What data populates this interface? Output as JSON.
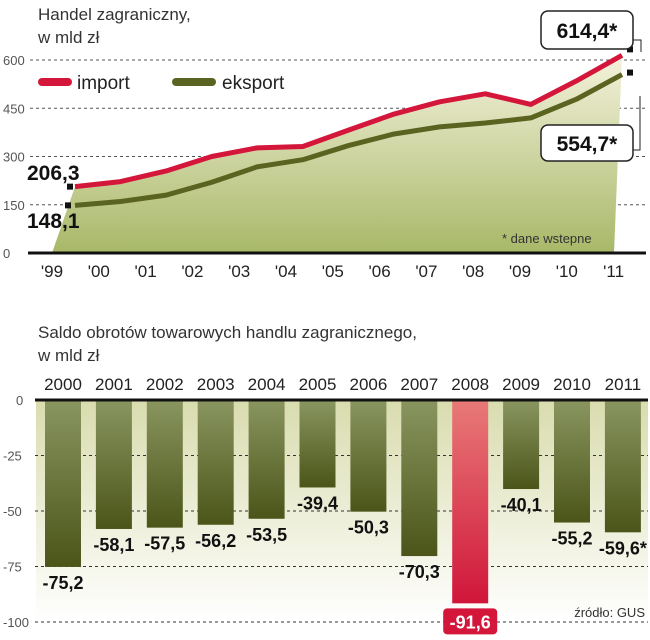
{
  "chart_data": [
    {
      "type": "line",
      "title": "Handel zagraniczny,",
      "subtitle": "w mld zł",
      "categories": [
        "'99",
        "'00",
        "'01",
        "'02",
        "'03",
        "'04",
        "'05",
        "'06",
        "'07",
        "'08",
        "'09",
        "'10",
        "'11"
      ],
      "series": [
        {
          "name": "import",
          "color": "#d4163a",
          "values": [
            206.3,
            222,
            255,
            300,
            327,
            331,
            382,
            432,
            470,
            495,
            462,
            535,
            614.4
          ]
        },
        {
          "name": "eksport",
          "color": "#5a6420",
          "values": [
            148.1,
            160,
            180,
            220,
            268,
            290,
            334,
            370,
            392,
            404,
            420,
            478,
            554.7
          ]
        }
      ],
      "yticks": [
        0,
        150,
        300,
        450,
        600
      ],
      "ylim": [
        0,
        650
      ],
      "grid": true,
      "legend": "top-left",
      "annotations": {
        "first_import": "206,3",
        "first_export": "148,1",
        "last_import": "614,4*",
        "last_export": "554,7*"
      },
      "note": "* dane wstepne"
    },
    {
      "type": "bar",
      "title": "Saldo obrotów towarowych handlu zagranicznego,",
      "subtitle": "w mld zł",
      "categories": [
        "2000",
        "2001",
        "2002",
        "2003",
        "2004",
        "2005",
        "2006",
        "2007",
        "2008",
        "2009",
        "2010",
        "2011"
      ],
      "values": [
        -75.2,
        -58.1,
        -57.5,
        -56.2,
        -53.5,
        -39.4,
        -50.3,
        -70.3,
        -91.6,
        -40.1,
        -55.2,
        -59.6
      ],
      "labels": [
        "-75,2",
        "-58,1",
        "-57,5",
        "-56,2",
        "-53,5",
        "-39,4",
        "-50,3",
        "-70,3",
        "-91,6",
        "-40,1",
        "-55,2",
        "-59,6*"
      ],
      "highlight": "2008",
      "colors": {
        "bar": "#5c6626",
        "highlight": "#d4163a"
      },
      "yticks": [
        0,
        -25,
        -50,
        -75,
        -100
      ],
      "ytick_labels": [
        "0",
        "-25",
        "-50",
        "-75",
        "-100"
      ],
      "ylim": [
        -100,
        0
      ],
      "grid": true,
      "source": "źródło: GUS"
    }
  ]
}
